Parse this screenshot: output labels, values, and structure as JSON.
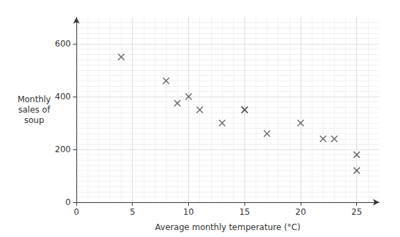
{
  "chart_data": {
    "type": "scatter",
    "xlabel": "Average monthly temperature (°C)",
    "ylabel": "Monthly\nsales of\nsoup",
    "x": [
      4,
      8,
      9,
      10,
      11,
      13,
      15,
      15,
      17,
      20,
      22,
      23,
      25,
      25
    ],
    "values": [
      550,
      460,
      375,
      400,
      350,
      300,
      350,
      350,
      260,
      300,
      240,
      240,
      120,
      180
    ],
    "xlim": [
      0,
      27
    ],
    "ylim": [
      0,
      700
    ],
    "xticks": [
      0,
      5,
      10,
      15,
      20,
      25
    ],
    "yticks": [
      0,
      200,
      400,
      600
    ],
    "grid": true,
    "color": "#444444",
    "marker": "x"
  }
}
